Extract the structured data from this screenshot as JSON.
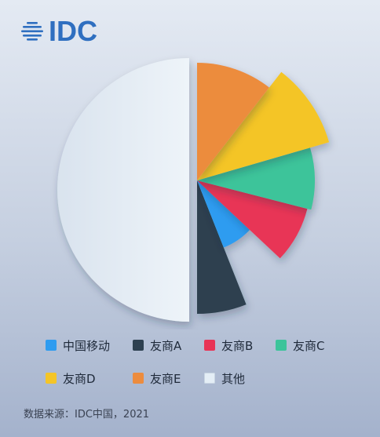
{
  "logo": {
    "text": "IDC",
    "color": "#2f6fc0",
    "icon": "globe-lines-icon"
  },
  "chart_data": {
    "type": "pie",
    "title": "",
    "categories": [
      "中国移动",
      "友商A",
      "友商B",
      "友商C",
      "友商D",
      "友商E",
      "其他"
    ],
    "values": [
      7,
      6,
      8,
      8.5,
      10,
      10.5,
      50
    ],
    "colors": [
      "#2e9cf0",
      "#2d4050",
      "#e83456",
      "#3cc49a",
      "#f4c528",
      "#ec8c3e",
      "#e4eef6"
    ],
    "legend_position": "bottom",
    "legend": [
      {
        "label": "中国移动",
        "color": "#2e9cf0"
      },
      {
        "label": "友商A",
        "color": "#2d4050"
      },
      {
        "label": "友商B",
        "color": "#e83456"
      },
      {
        "label": "友商C",
        "color": "#3cc49a"
      },
      {
        "label": "友商D",
        "color": "#f4c528"
      },
      {
        "label": "友商E",
        "color": "#ec8c3e"
      },
      {
        "label": "其他",
        "color": "#e4eef6"
      }
    ]
  },
  "source": "数据来源：IDC中国，2021"
}
